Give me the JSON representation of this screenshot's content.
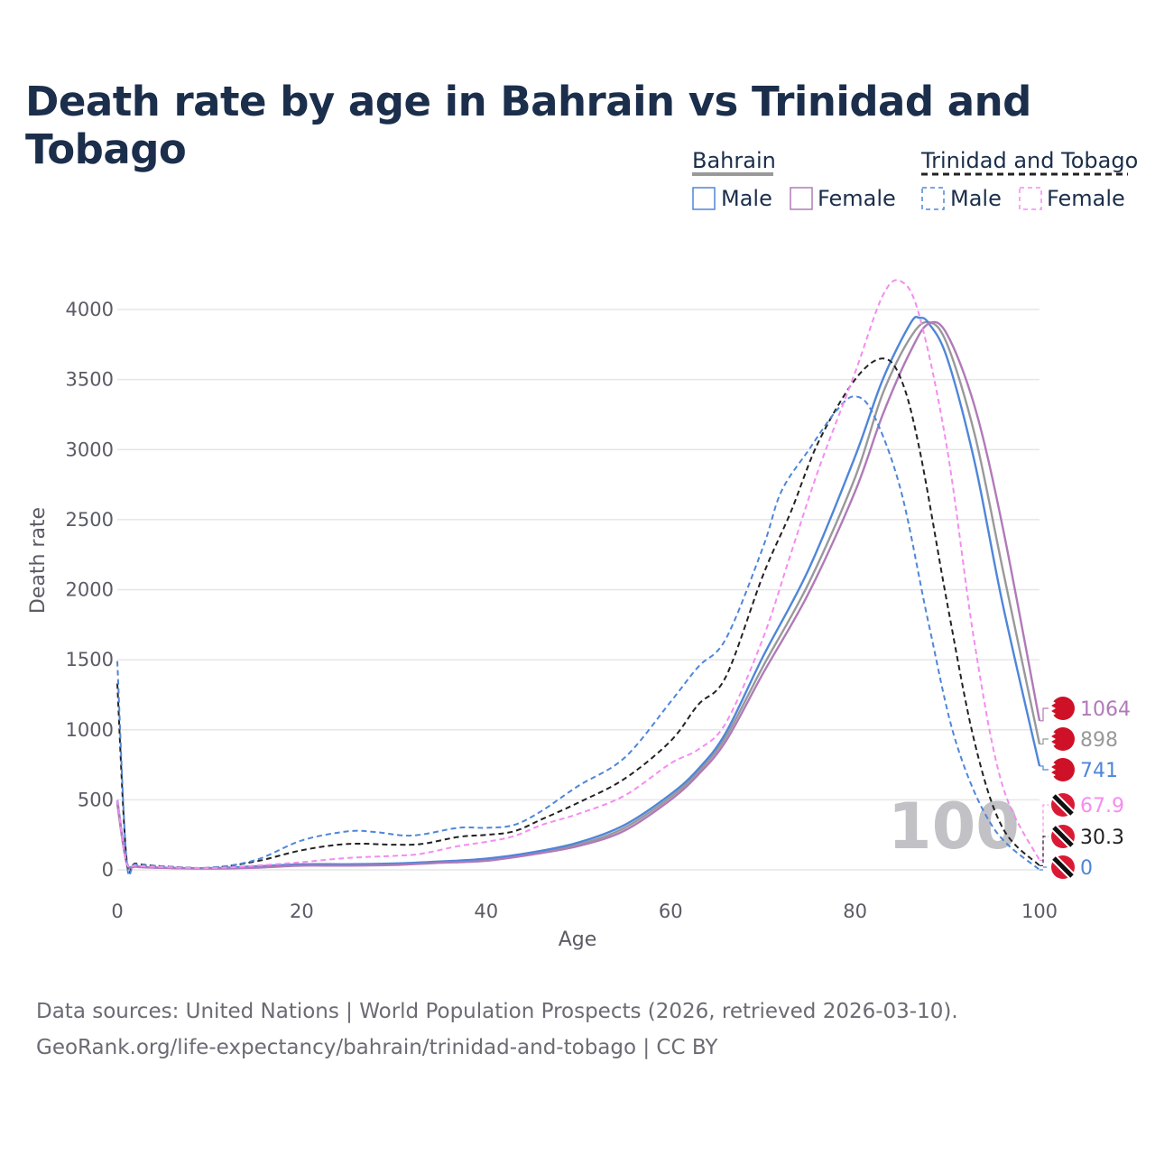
{
  "title": "Death rate by age in Bahrain vs Trinidad and Tobago",
  "legend": {
    "group1": "Bahrain",
    "group2": "Trinidad and Tobago",
    "male": "Male",
    "female": "Female"
  },
  "age_marker": "100",
  "sources": {
    "line1": "Data sources: United Nations | World Population Prospects (2026, retrieved 2026-03-10).",
    "line2": "GeoRank.org/life-expectancy/bahrain/trinidad-and-tobago | CC BY"
  },
  "colors": {
    "male": "#4f86d9",
    "female": "#b07ab8",
    "total": "#999999",
    "tt_male": "#4f86d9",
    "tt_female": "#f58cf0",
    "tt_total": "#222222",
    "grid": "#e6e6e6"
  },
  "chart_data": {
    "type": "line",
    "xlabel": "Age",
    "ylabel": "Death rate",
    "xlim": [
      0,
      100
    ],
    "ylim": [
      0,
      4000
    ],
    "xticks": [
      0,
      20,
      40,
      60,
      80,
      100
    ],
    "yticks": [
      0,
      500,
      1000,
      1500,
      2000,
      2500,
      3000,
      3500,
      4000
    ],
    "series": [
      {
        "name": "Bahrain Total",
        "style": "solid",
        "color": "#999999",
        "end_label": "898",
        "points": [
          [
            0,
            470
          ],
          [
            1,
            55
          ],
          [
            2,
            25
          ],
          [
            5,
            15
          ],
          [
            10,
            10
          ],
          [
            15,
            20
          ],
          [
            20,
            35
          ],
          [
            25,
            35
          ],
          [
            30,
            40
          ],
          [
            35,
            55
          ],
          [
            40,
            75
          ],
          [
            45,
            115
          ],
          [
            50,
            180
          ],
          [
            55,
            300
          ],
          [
            60,
            520
          ],
          [
            63,
            700
          ],
          [
            66,
            950
          ],
          [
            70,
            1450
          ],
          [
            75,
            2050
          ],
          [
            80,
            2800
          ],
          [
            83,
            3400
          ],
          [
            86,
            3800
          ],
          [
            88,
            3910
          ],
          [
            90,
            3750
          ],
          [
            93,
            3100
          ],
          [
            96,
            2150
          ],
          [
            100,
            898
          ]
        ]
      },
      {
        "name": "Bahrain Male",
        "style": "solid",
        "color": "#4f86d9",
        "end_label": "741",
        "points": [
          [
            0,
            500
          ],
          [
            1,
            60
          ],
          [
            2,
            25
          ],
          [
            5,
            15
          ],
          [
            10,
            12
          ],
          [
            15,
            25
          ],
          [
            20,
            40
          ],
          [
            25,
            40
          ],
          [
            30,
            45
          ],
          [
            35,
            60
          ],
          [
            40,
            80
          ],
          [
            45,
            125
          ],
          [
            50,
            195
          ],
          [
            55,
            320
          ],
          [
            60,
            540
          ],
          [
            63,
            720
          ],
          [
            66,
            980
          ],
          [
            70,
            1520
          ],
          [
            75,
            2150
          ],
          [
            80,
            2950
          ],
          [
            83,
            3500
          ],
          [
            86,
            3900
          ],
          [
            87,
            3940
          ],
          [
            88,
            3900
          ],
          [
            90,
            3650
          ],
          [
            93,
            2900
          ],
          [
            96,
            1900
          ],
          [
            100,
            741
          ]
        ]
      },
      {
        "name": "Bahrain Female",
        "style": "solid",
        "color": "#b07ab8",
        "end_label": "1064",
        "points": [
          [
            0,
            490
          ],
          [
            1,
            50
          ],
          [
            2,
            22
          ],
          [
            5,
            14
          ],
          [
            10,
            9
          ],
          [
            15,
            15
          ],
          [
            20,
            30
          ],
          [
            25,
            30
          ],
          [
            30,
            35
          ],
          [
            35,
            50
          ],
          [
            40,
            65
          ],
          [
            45,
            110
          ],
          [
            50,
            170
          ],
          [
            55,
            280
          ],
          [
            60,
            500
          ],
          [
            63,
            680
          ],
          [
            66,
            920
          ],
          [
            70,
            1400
          ],
          [
            75,
            1980
          ],
          [
            80,
            2700
          ],
          [
            83,
            3250
          ],
          [
            86,
            3700
          ],
          [
            88,
            3900
          ],
          [
            90,
            3820
          ],
          [
            93,
            3300
          ],
          [
            96,
            2450
          ],
          [
            100,
            1064
          ]
        ]
      },
      {
        "name": "Trinidad and Tobago Total",
        "style": "dashed",
        "color": "#222222",
        "end_label": "30.3",
        "points": [
          [
            0,
            1330
          ],
          [
            1,
            80
          ],
          [
            2,
            45
          ],
          [
            5,
            25
          ],
          [
            10,
            15
          ],
          [
            15,
            60
          ],
          [
            20,
            140
          ],
          [
            25,
            185
          ],
          [
            30,
            180
          ],
          [
            33,
            185
          ],
          [
            37,
            235
          ],
          [
            40,
            250
          ],
          [
            43,
            275
          ],
          [
            46,
            360
          ],
          [
            50,
            480
          ],
          [
            55,
            650
          ],
          [
            60,
            920
          ],
          [
            63,
            1180
          ],
          [
            66,
            1380
          ],
          [
            70,
            2100
          ],
          [
            73,
            2550
          ],
          [
            76,
            3050
          ],
          [
            80,
            3500
          ],
          [
            83,
            3650
          ],
          [
            85,
            3500
          ],
          [
            87,
            3000
          ],
          [
            90,
            1900
          ],
          [
            93,
            900
          ],
          [
            96,
            300
          ],
          [
            100,
            30.3
          ]
        ]
      },
      {
        "name": "Trinidad and Tobago Male",
        "style": "dashed",
        "color": "#4f86d9",
        "end_label": "0",
        "points": [
          [
            0,
            1490
          ],
          [
            1,
            75
          ],
          [
            2,
            40
          ],
          [
            5,
            25
          ],
          [
            10,
            15
          ],
          [
            15,
            70
          ],
          [
            20,
            210
          ],
          [
            25,
            275
          ],
          [
            28,
            270
          ],
          [
            32,
            245
          ],
          [
            37,
            300
          ],
          [
            40,
            300
          ],
          [
            43,
            320
          ],
          [
            46,
            420
          ],
          [
            50,
            600
          ],
          [
            55,
            800
          ],
          [
            60,
            1200
          ],
          [
            63,
            1450
          ],
          [
            66,
            1650
          ],
          [
            70,
            2300
          ],
          [
            72,
            2700
          ],
          [
            75,
            3000
          ],
          [
            78,
            3280
          ],
          [
            80,
            3380
          ],
          [
            82,
            3250
          ],
          [
            85,
            2700
          ],
          [
            88,
            1750
          ],
          [
            91,
            900
          ],
          [
            95,
            300
          ],
          [
            100,
            0
          ]
        ]
      },
      {
        "name": "Trinidad and Tobago Female",
        "style": "dashed",
        "color": "#f58cf0",
        "end_label": "67.9",
        "points": [
          [
            0,
            500
          ],
          [
            1,
            55
          ],
          [
            2,
            30
          ],
          [
            5,
            20
          ],
          [
            10,
            12
          ],
          [
            15,
            30
          ],
          [
            20,
            55
          ],
          [
            25,
            85
          ],
          [
            30,
            100
          ],
          [
            33,
            115
          ],
          [
            37,
            170
          ],
          [
            40,
            200
          ],
          [
            43,
            240
          ],
          [
            46,
            320
          ],
          [
            50,
            400
          ],
          [
            55,
            530
          ],
          [
            60,
            760
          ],
          [
            63,
            860
          ],
          [
            66,
            1050
          ],
          [
            70,
            1650
          ],
          [
            73,
            2250
          ],
          [
            76,
            2850
          ],
          [
            80,
            3550
          ],
          [
            83,
            4100
          ],
          [
            85,
            4200
          ],
          [
            87,
            3950
          ],
          [
            90,
            3000
          ],
          [
            93,
            1600
          ],
          [
            96,
            600
          ],
          [
            100,
            67.9
          ]
        ]
      }
    ]
  }
}
